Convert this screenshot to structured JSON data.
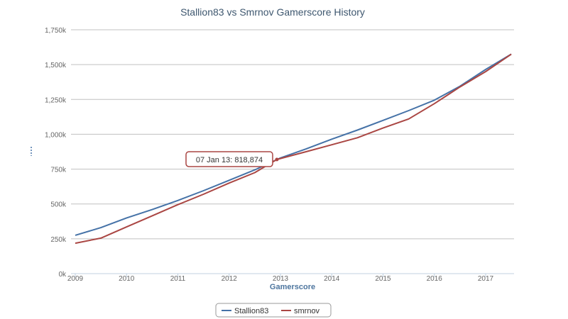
{
  "chart_data": {
    "type": "line",
    "title": "Stallion83 vs Smrnov Gamerscore History",
    "xlabel": "Gamerscore",
    "ylabel": "",
    "xlim": [
      2009,
      2017.6
    ],
    "ylim": [
      0,
      1750000
    ],
    "x_ticks": [
      2009,
      2010,
      2011,
      2012,
      2013,
      2014,
      2015,
      2016,
      2017
    ],
    "x_tick_labels": [
      "2009",
      "2010",
      "2011",
      "2012",
      "2013",
      "2014",
      "2015",
      "2016",
      "2017"
    ],
    "y_ticks": [
      0,
      250000,
      500000,
      750000,
      1000000,
      1250000,
      1500000,
      1750000
    ],
    "y_tick_labels": [
      "0k",
      "250k",
      "500k",
      "750k",
      "1,000k",
      "1,250k",
      "1,500k",
      "1,750k"
    ],
    "grid": true,
    "legend_position": "bottom-center",
    "series": [
      {
        "name": "Stallion83",
        "color": "#4572a7",
        "x": [
          2009,
          2009.5,
          2010,
          2010.5,
          2011,
          2011.5,
          2012,
          2012.5,
          2013,
          2013.5,
          2014,
          2014.5,
          2015,
          2015.5,
          2016,
          2016.5,
          2017,
          2017.5
        ],
        "y": [
          275000,
          330000,
          400000,
          460000,
          525000,
          595000,
          670000,
          745000,
          830000,
          895000,
          965000,
          1030000,
          1100000,
          1170000,
          1245000,
          1345000,
          1465000,
          1575000
        ]
      },
      {
        "name": "smrnov",
        "color": "#aa4643",
        "x": [
          2009,
          2009.5,
          2010,
          2010.5,
          2011,
          2011.5,
          2012,
          2012.5,
          2012.93,
          2013.5,
          2014,
          2014.5,
          2015,
          2015.5,
          2016,
          2016.5,
          2017,
          2017.5
        ],
        "y": [
          218000,
          255000,
          335000,
          415000,
          495000,
          570000,
          650000,
          725000,
          818874,
          875000,
          925000,
          975000,
          1045000,
          1110000,
          1220000,
          1340000,
          1450000,
          1575000
        ]
      }
    ],
    "tooltip": {
      "label": "07 Jan 13: 818,874",
      "series": "smrnov",
      "x": 2012.93,
      "y": 818874
    }
  }
}
